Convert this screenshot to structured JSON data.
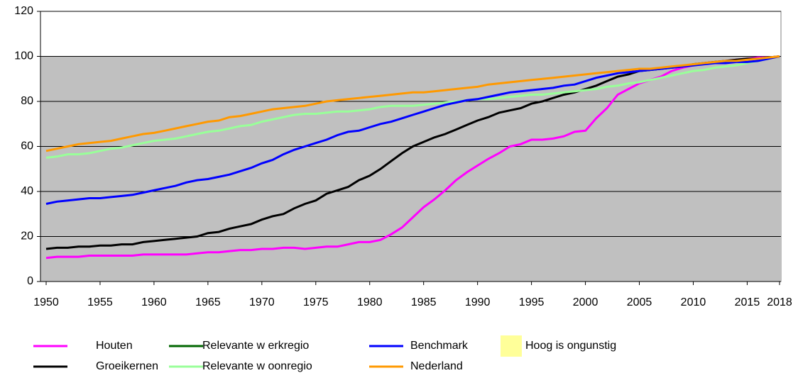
{
  "chart_data": {
    "type": "line",
    "x": [
      1950,
      1951,
      1952,
      1953,
      1954,
      1955,
      1956,
      1957,
      1958,
      1959,
      1960,
      1961,
      1962,
      1963,
      1964,
      1965,
      1966,
      1967,
      1968,
      1969,
      1970,
      1971,
      1972,
      1973,
      1974,
      1975,
      1976,
      1977,
      1978,
      1979,
      1980,
      1981,
      1982,
      1983,
      1984,
      1985,
      1986,
      1987,
      1988,
      1989,
      1990,
      1991,
      1992,
      1993,
      1994,
      1995,
      1996,
      1997,
      1998,
      1999,
      2000,
      2001,
      2002,
      2003,
      2004,
      2005,
      2006,
      2007,
      2008,
      2009,
      2010,
      2011,
      2012,
      2013,
      2014,
      2015,
      2016,
      2017,
      2018
    ],
    "xlim": [
      1950,
      2018
    ],
    "xticks": [
      1950,
      1955,
      1960,
      1965,
      1970,
      1975,
      1980,
      1985,
      1990,
      1995,
      2000,
      2005,
      2010,
      2015,
      2018
    ],
    "ylim": [
      0,
      120
    ],
    "yticks": [
      0,
      20,
      40,
      60,
      80,
      100,
      120
    ],
    "grid": true,
    "series": [
      {
        "name": "Houten",
        "color": "#ff00ff",
        "values": [
          10.5,
          11,
          11,
          11,
          11.5,
          11.5,
          11.5,
          11.5,
          11.5,
          12,
          12,
          12,
          12,
          12,
          12.5,
          13,
          13,
          13.5,
          14,
          14,
          14.5,
          14.5,
          15,
          15,
          14.5,
          15,
          15.5,
          15.5,
          16.5,
          17.5,
          17.5,
          18.5,
          21,
          24,
          28.5,
          33,
          36.5,
          40.5,
          45,
          48.5,
          51.5,
          54.5,
          57,
          60,
          61,
          63,
          63,
          63.5,
          64.5,
          66.5,
          67,
          72.5,
          77,
          83,
          85.5,
          88,
          89.5,
          91,
          93.5,
          95,
          96,
          97,
          97.5,
          98,
          98.5,
          99,
          99.5,
          99.5,
          100
        ]
      },
      {
        "name": "Groeikernen",
        "color": "#000000",
        "values": [
          14.5,
          15,
          15,
          15.5,
          15.5,
          16,
          16,
          16.5,
          16.5,
          17.5,
          18,
          18.5,
          19,
          19.5,
          20,
          21.5,
          22,
          23.5,
          24.5,
          25.5,
          27.5,
          29,
          30,
          32.5,
          34.5,
          36,
          39,
          40.5,
          42,
          45,
          47,
          50,
          53.5,
          57,
          60,
          62,
          64,
          65.5,
          67.5,
          69.5,
          71.5,
          73,
          75,
          76,
          77,
          79,
          80,
          81.5,
          83,
          84,
          85.5,
          87,
          89,
          91,
          92,
          93.5,
          94,
          94.5,
          95,
          95.5,
          96.5,
          97,
          97.5,
          98,
          98.5,
          99,
          99,
          99.5,
          100
        ]
      },
      {
        "name": "Relevante w erkregio",
        "color": "#006600",
        "values": [
          null,
          null,
          null,
          null,
          null,
          null,
          null,
          null,
          null,
          null,
          null,
          null,
          null,
          null,
          null,
          null,
          null,
          null,
          null,
          null,
          null,
          null,
          null,
          null,
          null,
          null,
          null,
          null,
          null,
          null,
          null,
          null,
          null,
          null,
          null,
          null,
          null,
          null,
          null,
          null,
          null,
          null,
          null,
          null,
          null,
          null,
          null,
          null,
          null,
          null,
          null,
          null,
          null,
          null,
          null,
          null,
          null,
          null,
          null,
          null,
          null,
          null,
          null,
          null,
          null,
          null,
          null,
          null,
          null
        ]
      },
      {
        "name": "Relevante w oonregio",
        "color": "#99ff99",
        "values": [
          55,
          55.5,
          56.5,
          56.5,
          57,
          58,
          59,
          59.5,
          60.5,
          61.5,
          62.5,
          63,
          63.5,
          64.5,
          65.5,
          66.5,
          67,
          68,
          69,
          69.5,
          71,
          72,
          73,
          74,
          74.5,
          74.5,
          75,
          75.5,
          75.5,
          76,
          76.5,
          77.5,
          78,
          78,
          78,
          78.5,
          79,
          79.5,
          80,
          80.5,
          81,
          81,
          81.5,
          82,
          82.5,
          83,
          83,
          83.5,
          84,
          84.5,
          85,
          85.5,
          86.5,
          87,
          88,
          88.5,
          89.5,
          90.5,
          91.5,
          92.5,
          93.5,
          94,
          95,
          95.5,
          96,
          97,
          98,
          99,
          100
        ]
      },
      {
        "name": "Benchmark",
        "color": "#0000ff",
        "values": [
          34.5,
          35.5,
          36,
          36.5,
          37,
          37,
          37.5,
          38,
          38.5,
          39.5,
          40.5,
          41.5,
          42.5,
          44,
          45,
          45.5,
          46.5,
          47.5,
          49,
          50.5,
          52.5,
          54,
          56.5,
          58.5,
          60,
          61.5,
          63,
          65,
          66.5,
          67,
          68.5,
          70,
          71,
          72.5,
          74,
          75.5,
          77,
          78.5,
          79.5,
          80.5,
          81,
          82,
          83,
          84,
          84.5,
          85,
          85.5,
          86,
          87,
          87.5,
          89,
          90.5,
          91.5,
          92.5,
          93,
          93.5,
          94,
          94.5,
          95,
          95.5,
          96,
          96.5,
          97,
          97,
          97.5,
          97.5,
          98,
          99,
          100
        ]
      },
      {
        "name": "Nederland",
        "color": "#ff9900",
        "values": [
          58,
          59,
          60,
          61,
          61.5,
          62,
          62.5,
          63.5,
          64.5,
          65.5,
          66,
          67,
          68,
          69,
          70,
          71,
          71.5,
          73,
          73.5,
          74.5,
          75.5,
          76.5,
          77,
          77.5,
          78,
          79,
          80,
          80.5,
          81,
          81.5,
          82,
          82.5,
          83,
          83.5,
          84,
          84,
          84.5,
          85,
          85.5,
          86,
          86.5,
          87.5,
          88,
          88.5,
          89,
          89.5,
          90,
          90.5,
          91,
          91.5,
          92,
          92.5,
          93,
          93.5,
          94,
          94.5,
          94.5,
          95,
          95.5,
          96,
          96.5,
          97,
          97.5,
          98,
          98,
          98.5,
          99,
          99.5,
          100
        ]
      }
    ],
    "shaded_region": {
      "label": "Hoog is ongunstig",
      "color": "#ffff99"
    }
  }
}
